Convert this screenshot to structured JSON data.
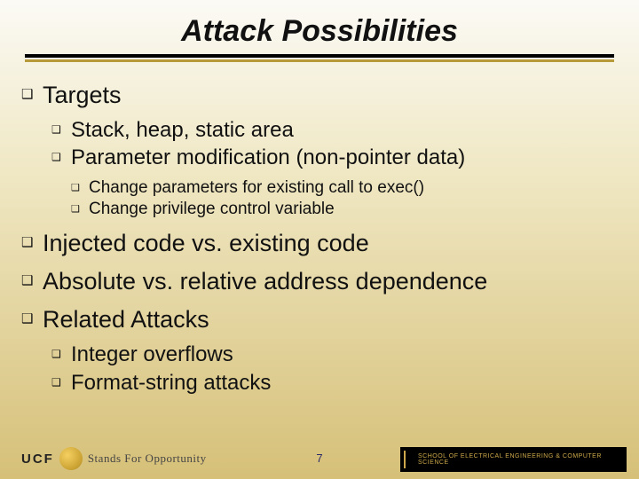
{
  "title": "Attack Possibilities",
  "bullets_lvl1a": [
    {
      "text": "Targets"
    }
  ],
  "bullets_lvl2a": [
    {
      "text": "Stack, heap, static area"
    },
    {
      "text": "Parameter modification (non-pointer data)"
    }
  ],
  "bullets_lvl3": [
    {
      "text": "Change parameters for existing call to exec()"
    },
    {
      "text": "Change privilege control variable"
    }
  ],
  "bullets_lvl1b": [
    {
      "text": "Injected code vs. existing code"
    },
    {
      "text": "Absolute vs. relative address dependence"
    },
    {
      "text": "Related Attacks"
    }
  ],
  "bullets_lvl2b": [
    {
      "text": "Integer overflows"
    },
    {
      "text": "Format-string attacks"
    }
  ],
  "footer": {
    "ucf": "UCF",
    "tagline": "Stands For Opportunity",
    "page": "7",
    "dept": "SCHOOL OF ELECTRICAL ENGINEERING & COMPUTER SCIENCE"
  },
  "bullet_glyph": "❑",
  "colors": {
    "title": "#111111",
    "rule": "#000000",
    "rule_shadow": "#b79b3a",
    "text": "#111111",
    "page_num": "#2a2a6a",
    "dept_bg": "#000000",
    "dept_fg": "#cda84a"
  }
}
